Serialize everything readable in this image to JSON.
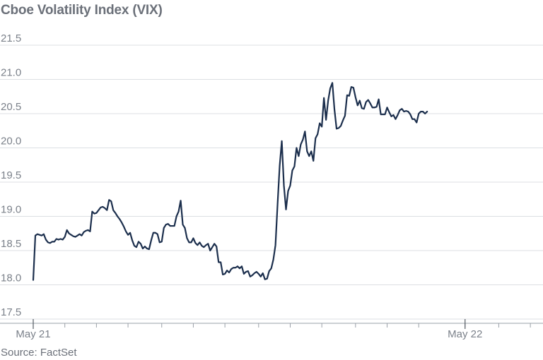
{
  "header": {
    "title": "Cboe Volatility Index (VIX)"
  },
  "footer": {
    "source": "Source: FactSet"
  },
  "colors": {
    "line": "#1c2f4d",
    "grid": "#dcdfe3",
    "axis": "#9aa0a8",
    "text": "#7b818a"
  },
  "chart_data": {
    "type": "line",
    "title": "Cboe Volatility Index (VIX)",
    "xlabel": "",
    "ylabel": "",
    "ylim": [
      17.5,
      21.5
    ],
    "yticks": [
      17.5,
      18.0,
      18.5,
      19.0,
      19.5,
      20.0,
      20.5,
      21.0,
      21.5
    ],
    "ytick_labels": [
      "17.5",
      "18.0",
      "18.5",
      "19.0",
      "19.5",
      "20.0",
      "20.5",
      "21.0",
      "21.5"
    ],
    "xticks": [
      {
        "label": "May 21",
        "index": 0
      },
      {
        "label": "May 22",
        "index": 205
      }
    ],
    "minor_xtick_indices": [
      0,
      15,
      30,
      45,
      61,
      76,
      91,
      107,
      122,
      137,
      153,
      168,
      183,
      205,
      221,
      236
    ],
    "x_count": 243,
    "grid": true,
    "series": [
      {
        "values": [
          18.07,
          18.72,
          18.74,
          18.73,
          18.72,
          18.74,
          18.66,
          18.62,
          18.61,
          18.63,
          18.63,
          18.67,
          18.66,
          18.67,
          18.66,
          18.7,
          18.8,
          18.75,
          18.73,
          18.71,
          18.7,
          18.72,
          18.74,
          18.72,
          18.77,
          18.79,
          18.8,
          18.78,
          19.07,
          19.04,
          19.05,
          19.09,
          19.13,
          19.14,
          19.12,
          19.09,
          19.24,
          19.22,
          19.09,
          19.05,
          19.0,
          18.96,
          18.91,
          18.85,
          18.78,
          18.73,
          18.76,
          18.65,
          18.57,
          18.55,
          18.63,
          18.6,
          18.53,
          18.56,
          18.53,
          18.52,
          18.65,
          18.76,
          18.76,
          18.74,
          18.62,
          18.63,
          18.83,
          18.88,
          18.89,
          18.86,
          18.86,
          18.86,
          19.0,
          19.07,
          19.23,
          18.88,
          18.83,
          18.68,
          18.62,
          18.62,
          18.68,
          18.61,
          18.58,
          18.62,
          18.57,
          18.55,
          18.58,
          18.6,
          18.5,
          18.55,
          18.6,
          18.56,
          18.33,
          18.33,
          18.15,
          18.16,
          18.21,
          18.18,
          18.23,
          18.25,
          18.25,
          18.27,
          18.24,
          18.27,
          18.16,
          18.19,
          18.2,
          18.12,
          18.14,
          18.17,
          18.19,
          18.16,
          18.12,
          18.17,
          18.08,
          18.09,
          18.2,
          18.24,
          18.37,
          18.58,
          19.18,
          19.74,
          20.1,
          19.45,
          19.1,
          19.37,
          19.45,
          19.67,
          19.73,
          20.0,
          19.88,
          20.05,
          20.12,
          20.24,
          19.95,
          19.88,
          19.95,
          19.81,
          20.14,
          20.2,
          20.36,
          20.31,
          20.73,
          20.41,
          20.69,
          20.87,
          20.95,
          20.56,
          20.28,
          20.29,
          20.32,
          20.4,
          20.47,
          20.77,
          20.76,
          20.89,
          20.88,
          20.74,
          20.62,
          20.69,
          20.58,
          20.57,
          20.67,
          20.7,
          20.65,
          20.59,
          20.59,
          20.6,
          20.71,
          20.49,
          20.49,
          20.49,
          20.59,
          20.52,
          20.46,
          20.48,
          20.42,
          20.48,
          20.55,
          20.57,
          20.53,
          20.54,
          20.53,
          20.49,
          20.42,
          20.42,
          20.37,
          20.5,
          20.53,
          20.53,
          20.5,
          20.53
        ]
      }
    ]
  }
}
